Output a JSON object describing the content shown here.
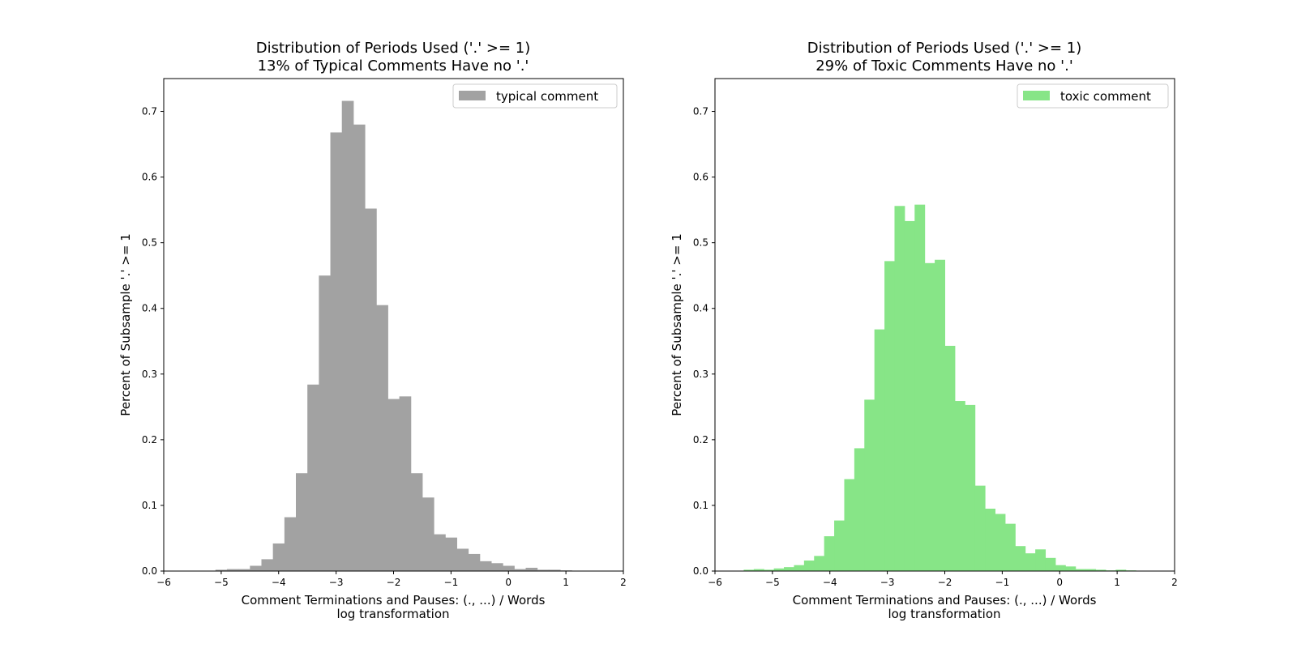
{
  "chart_data": [
    {
      "type": "bar",
      "title": "Distribution of Periods Used ('.' >= 1)",
      "subtitle": "13% of Typical Comments Have no '.'",
      "xlabel": "Comment Terminations and Pauses:  (., ...) / Words",
      "xlabel2": "log transformation",
      "ylabel": "Percent of Subsample '.' >= 1",
      "xlim": [
        -6,
        2
      ],
      "ylim": [
        0,
        0.75
      ],
      "xticks": [
        "−6",
        "−5",
        "−4",
        "−3",
        "−2",
        "−1",
        "0",
        "1",
        "2"
      ],
      "yticks": [
        "0.0",
        "0.1",
        "0.2",
        "0.3",
        "0.4",
        "0.5",
        "0.6",
        "0.7"
      ],
      "bin_start": -5.3,
      "bin_width": 0.2,
      "values": [
        0.0,
        0.002,
        0.003,
        0.003,
        0.008,
        0.018,
        0.042,
        0.082,
        0.149,
        0.284,
        0.45,
        0.668,
        0.716,
        0.68,
        0.552,
        0.405,
        0.262,
        0.266,
        0.149,
        0.112,
        0.056,
        0.051,
        0.034,
        0.026,
        0.015,
        0.012,
        0.008,
        0.003,
        0.005,
        0.002,
        0.002,
        0.001
      ],
      "color": "#a2a2a2",
      "legend": "typical comment",
      "legend_position": "top-right",
      "grid": false
    },
    {
      "type": "bar",
      "title": "Distribution of Periods Used ('.' >= 1)",
      "subtitle": "29% of Toxic Comments Have no '.'",
      "xlabel": "Comment Terminations and Pauses: (., ...) / Words",
      "xlabel2": "log transformation",
      "ylabel": "Percent of Subsample '.' >= 1",
      "xlim": [
        -6,
        2
      ],
      "ylim": [
        0,
        0.75
      ],
      "xticks": [
        "−6",
        "−5",
        "−4",
        "−3",
        "−2",
        "−1",
        "0",
        "1",
        "2"
      ],
      "yticks": [
        "0.0",
        "0.1",
        "0.2",
        "0.3",
        "0.4",
        "0.5",
        "0.6",
        "0.7"
      ],
      "bin_start": -5.5,
      "bin_width": 0.175,
      "values": [
        0.002,
        0.003,
        0.002,
        0.004,
        0.006,
        0.009,
        0.016,
        0.023,
        0.053,
        0.077,
        0.14,
        0.187,
        0.261,
        0.368,
        0.472,
        0.556,
        0.533,
        0.558,
        0.469,
        0.474,
        0.343,
        0.259,
        0.253,
        0.13,
        0.095,
        0.087,
        0.072,
        0.038,
        0.027,
        0.033,
        0.02,
        0.009,
        0.007,
        0.003,
        0.003,
        0.002,
        0.001,
        0.002,
        0.001
      ],
      "color": "#87e587",
      "legend": "toxic comment",
      "legend_position": "top-right",
      "grid": false
    }
  ]
}
